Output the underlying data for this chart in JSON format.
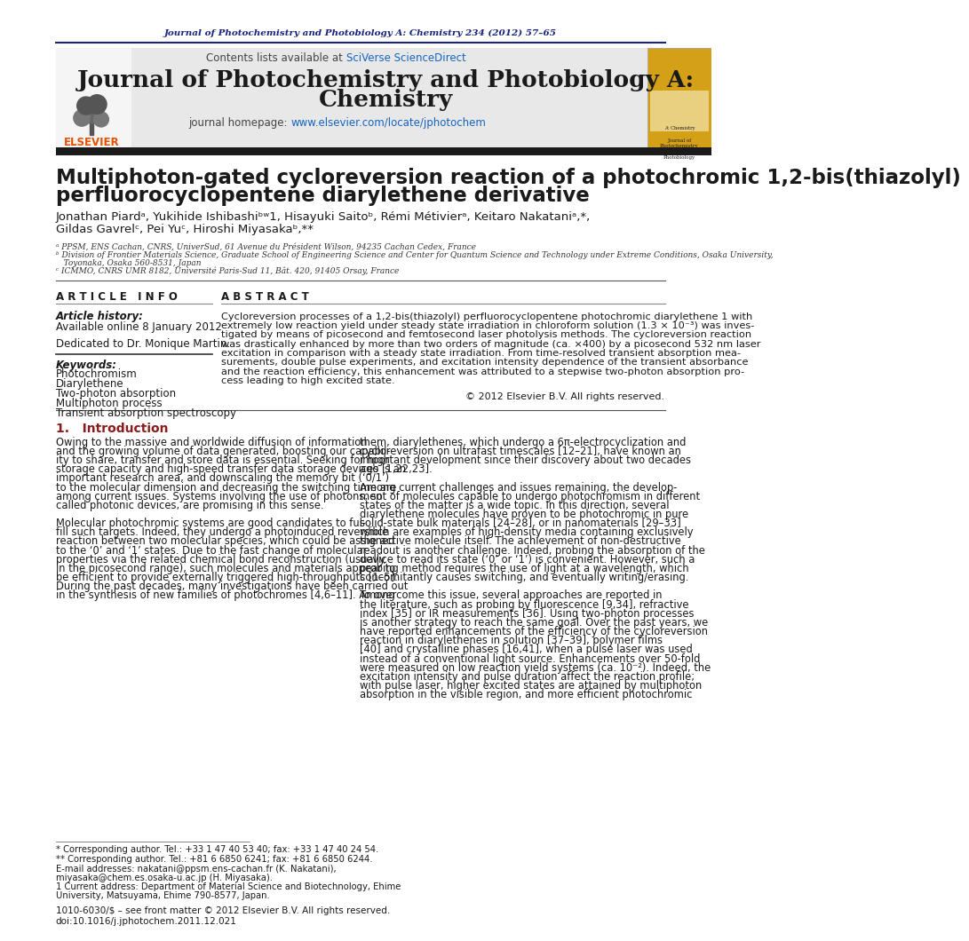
{
  "page_bg": "#ffffff",
  "top_journal_line": "Journal of Photochemistry and Photobiology A: Chemistry 234 (2012) 57–65",
  "top_journal_color": "#1a237e",
  "header_bg": "#e8e8e8",
  "contents_line": "Contents lists available at ",
  "sciverse_text": "SciVerse ScienceDirect",
  "sciverse_color": "#1565c0",
  "journal_title_line1": "Journal of Photochemistry and Photobiology A:",
  "journal_title_line2": "Chemistry",
  "journal_title_color": "#1a1a1a",
  "homepage_label": "journal homepage: ",
  "homepage_url": "www.elsevier.com/locate/jphotochem",
  "homepage_url_color": "#1565c0",
  "elsevier_color": "#e65100",
  "black_bar_color": "#1a1a1a",
  "paper_title_line1": "Multiphoton-gated cycloreversion reaction of a photochromic 1,2-bis(thiazolyl)",
  "paper_title_line2": "perfluorocyclopentene diarylethene derivative",
  "authors_line1": "Jonathan Piardᵃ, Yukihide Ishibashiᵇʷ1, Hisayuki Saitoᵇ, Rémi Métivierᵃ, Keitaro Nakataniᵃ,*,",
  "authors_line2": "Gildas Gavrelᶜ, Pei Yuᶜ, Hiroshi Miyasakaᵇ,**",
  "affil_a": "ᵃ PPSM, ENS Cachan, CNRS, UniverSud, 61 Avenue du Président Wilson, 94235 Cachan Cedex, France",
  "affil_b1": "ᵇ Division of Frontier Materials Science, Graduate School of Engineering Science and Center for Quantum Science and Technology under Extreme Conditions, Osaka University,",
  "affil_b2": "   Toyonaka, Osaka 560-8531, Japan",
  "affil_c": "ᶜ ICMMO, CNRS UMR 8182, Université Paris-Sud 11, Bât. 420, 91405 Orsay, France",
  "article_info_header": "A R T I C L E   I N F O",
  "abstract_header": "A B S T R A C T",
  "article_history_label": "Article history:",
  "available_online": "Available online 8 January 2012",
  "dedicated": "Dedicated to Dr. Monique Martin.",
  "keywords_label": "Keywords:",
  "keywords": [
    "Photochromism",
    "Diarylethene",
    "Two-photon absorption",
    "Multiphoton process",
    "Transient absorption spectroscopy"
  ],
  "copyright": "© 2012 Elsevier B.V. All rights reserved.",
  "intro_header": "1.   Introduction",
  "col1_intro": [
    "Owing to the massive and worldwide diffusion of information",
    "and the growing volume of data generated, boosting our capabil-",
    "ity to share, transfer and store data is essential. Seeking for high",
    "storage capacity and high-speed transfer data storage devices is an",
    "important research area, and downscaling the memory bit (‘0/1’)",
    "to the molecular dimension and decreasing the switching time are",
    "among current issues. Systems involving the use of photons, so",
    "called photonic devices, are promising in this sense.",
    "",
    "Molecular photochromic systems are good candidates to ful-",
    "fill such targets. Indeed, they undergo a photoinduced reversible",
    "reaction between two molecular species, which could be assigned",
    "to the ‘0’ and ‘1’ states. Due to the fast change of molecular",
    "properties via the related chemical bond reconstruction (usually",
    "in the picosecond range), such molecules and materials appear to",
    "be efficient to provide externally triggered high-throughputs [1–5].",
    "During the past decades, many investigations have been carried out",
    "in the synthesis of new families of photochromes [4,6–11]. Among"
  ],
  "col2_intro": [
    "them, diarylethenes, which undergo a 6π-electrocyclization and",
    "cycloreversion on ultrafast timescales [12–21], have known an",
    "important development since their discovery about two decades",
    "ago [1,22,23].",
    "",
    "Among current challenges and issues remaining, the develop-",
    "ment of molecules capable to undergo photochromism in different",
    "states of the matter is a wide topic. In this direction, several",
    "diarylethene molecules have proven to be photochromic in pure",
    "solid-state bulk materials [24–28], or in nanomaterials [29–33]",
    "which are examples of high-density media containing exclusively",
    "the active molecule itself. The achievement of non-destructive",
    "readout is another challenge. Indeed, probing the absorption of the",
    "device to read its state (‘0’ or ‘1’) is convenient. However, such a",
    "probing method requires the use of light at a wavelength, which",
    "concomitantly causes switching, and eventually writing/erasing.",
    "",
    "To overcome this issue, several approaches are reported in",
    "the literature, such as probing by fluorescence [9,34], refractive",
    "index [35] or IR measurements [36]. Using two-photon processes",
    "is another strategy to reach the same goal. Over the past years, we",
    "have reported enhancements of the efficiency of the cycloreversion",
    "reaction in diarylethenes in solution [37–39], polymer films",
    "[40] and crystalline phases [16,41], when a pulse laser was used",
    "instead of a conventional light source. Enhancements over 50-fold",
    "were measured on low reaction yield systems (ca. 10⁻²). Indeed, the",
    "excitation intensity and pulse duration affect the reaction profile;",
    "with pulse laser, higher excited states are attained by multiphoton",
    "absorption in the visible region, and more efficient photochromic"
  ],
  "abstract_lines": [
    "Cycloreversion processes of a 1,2-bis(thiazolyl) perfluorocyclopentene photochromic diarylethene 1 with",
    "extremely low reaction yield under steady state irradiation in chloroform solution (1.3 × 10⁻³) was inves-",
    "tigated by means of picosecond and femtosecond laser photolysis methods. The cycloreversion reaction",
    "was drastically enhanced by more than two orders of magnitude (ca. ×400) by a picosecond 532 nm laser",
    "excitation in comparison with a steady state irradiation. From time-resolved transient absorption mea-",
    "surements, double pulse experiments, and excitation intensity dependence of the transient absorbance",
    "and the reaction efficiency, this enhancement was attributed to a stepwise two-photon absorption pro-",
    "cess leading to high excited state."
  ],
  "footnote1": "* Corresponding author. Tel.: +33 1 47 40 53 40; fax: +33 1 47 40 24 54.",
  "footnote2": "** Corresponding author. Tel.: +81 6 6850 6241; fax: +81 6 6850 6244.",
  "footnote_email1": "E-mail addresses: nakatani@ppsm.ens-cachan.fr (K. Nakatani),",
  "footnote_email2": "miyasaka@chem.es.osaka-u.ac.jp (H. Miyasaka).",
  "footnote3a": "1 Current address: Department of Material Science and Biotechnology, Ehime",
  "footnote3b": "University, Matsuyama, Ehime 790-8577, Japan.",
  "issn_line": "1010-6030/$ – see front matter © 2012 Elsevier B.V. All rights reserved.",
  "doi_line": "doi:10.1016/j.jphotochem.2011.12.021"
}
